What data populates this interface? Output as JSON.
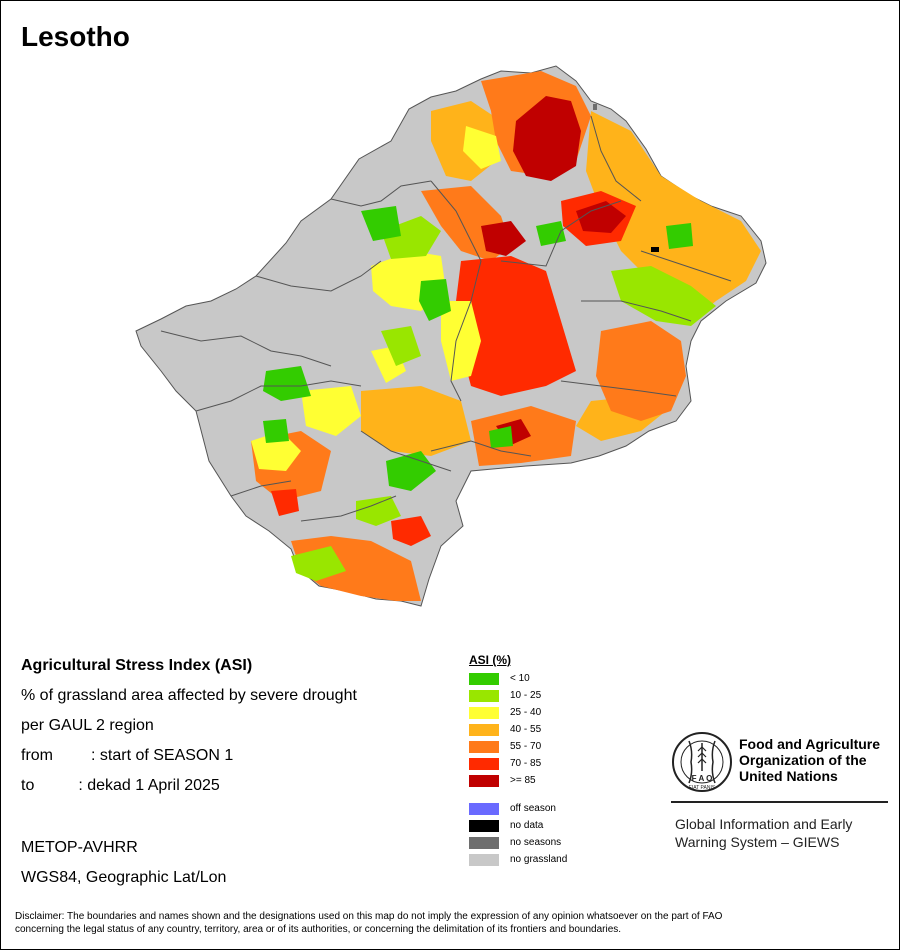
{
  "title": "Lesotho",
  "info": {
    "line1": "Agricultural Stress Index (ASI)",
    "line2": "% of grassland area affected by severe drought",
    "line3": "per GAUL 2 region",
    "from_label": "from",
    "from_value": ": start of SEASON 1",
    "to_label": "to",
    "to_value": ": dekad 1 April 2025",
    "sensor": "METOP-AVHRR",
    "projection": "WGS84, Geographic Lat/Lon"
  },
  "legend": {
    "title": "ASI (%)",
    "classes": [
      {
        "label": "< 10",
        "color": "#33cc00"
      },
      {
        "label": "10 - 25",
        "color": "#99e600"
      },
      {
        "label": "25 - 40",
        "color": "#ffff33"
      },
      {
        "label": "40 - 55",
        "color": "#ffb31a"
      },
      {
        "label": "55 - 70",
        "color": "#ff7a1a"
      },
      {
        "label": "70 - 85",
        "color": "#ff2a00"
      },
      {
        "label": ">= 85",
        "color": "#c00000"
      }
    ],
    "other": [
      {
        "label": "off season",
        "color": "#6a6aff"
      },
      {
        "label": "no data",
        "color": "#000000"
      },
      {
        "label": "no seasons",
        "color": "#6e6e6e"
      },
      {
        "label": "no grassland",
        "color": "#c8c8c8"
      }
    ]
  },
  "fao": {
    "name_line1": "Food and Agriculture",
    "name_line2": "Organization of the",
    "name_line3": "United Nations",
    "logo_letters": "F A O",
    "logo_motto": "FIAT PANIS",
    "giews_line1": "Global Information and Early",
    "giews_line2": "Warning System – GIEWS"
  },
  "disclaimer_line1": "Disclaimer: The boundaries and names shown and the designations used on this map do not imply the expression of any opinion whatsoever on the part of FAO",
  "disclaimer_line2": "concerning the legal status of any country, territory, area or of its authorities, or concerning the delimitation of its frontiers and boundaries.",
  "map": {
    "country": "Lesotho",
    "fill_no_grassland": "#c8c8c8",
    "border_color": "#555555",
    "zones": [
      {
        "class": ">= 85"
      },
      {
        "class": "70 - 85"
      },
      {
        "class": "55 - 70"
      },
      {
        "class": "40 - 55"
      },
      {
        "class": "25 - 40"
      },
      {
        "class": "10 - 25"
      },
      {
        "class": "< 10"
      }
    ]
  }
}
